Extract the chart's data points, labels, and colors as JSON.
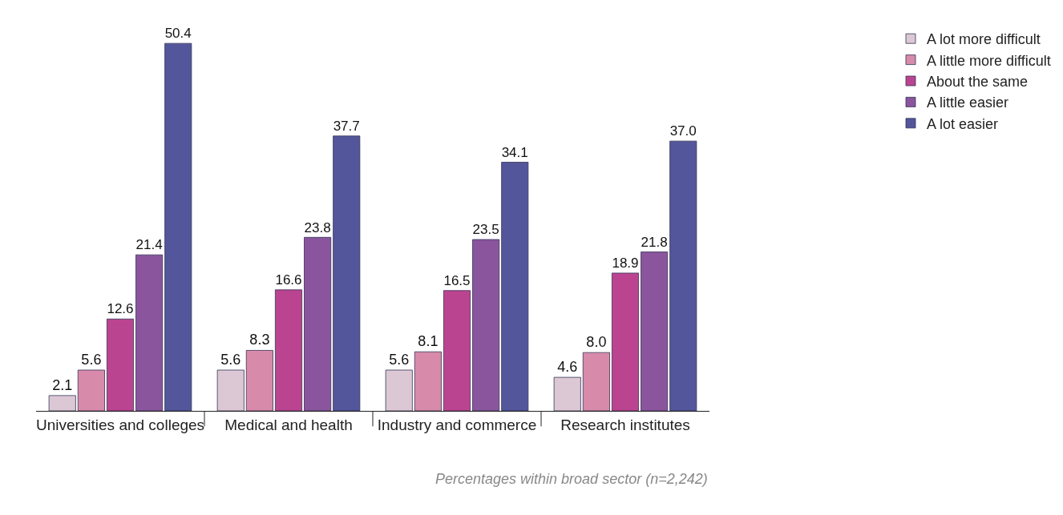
{
  "chart_data": {
    "type": "bar",
    "categories": [
      "Universities and colleges",
      "Medical and health",
      "Industry and commerce",
      "Research institutes"
    ],
    "series": [
      {
        "name": "A lot more difficult",
        "color": "#dcc8d4",
        "values": [
          2.1,
          5.6,
          5.6,
          4.6
        ]
      },
      {
        "name": "A little more difficult",
        "color": "#d88aaa",
        "values": [
          5.6,
          8.3,
          8.1,
          8.0
        ],
        "value_labels": [
          "5.6",
          "8.3",
          "8.1",
          "8.0"
        ]
      },
      {
        "name": "About the same",
        "color": "#bb4490",
        "values": [
          12.6,
          16.6,
          16.5,
          18.9
        ]
      },
      {
        "name": "A little easier",
        "color": "#8a559c",
        "values": [
          21.4,
          23.8,
          23.5,
          21.8
        ]
      },
      {
        "name": "A lot easier",
        "color": "#53569a",
        "values": [
          50.4,
          37.7,
          34.1,
          37.0
        ],
        "value_labels": [
          "50.4",
          "37.7",
          "34.1",
          "37.0"
        ]
      }
    ],
    "data_labels": true,
    "legend": "top right",
    "annotations": [
      "Percentages within broad sector (n=2,242)"
    ]
  }
}
